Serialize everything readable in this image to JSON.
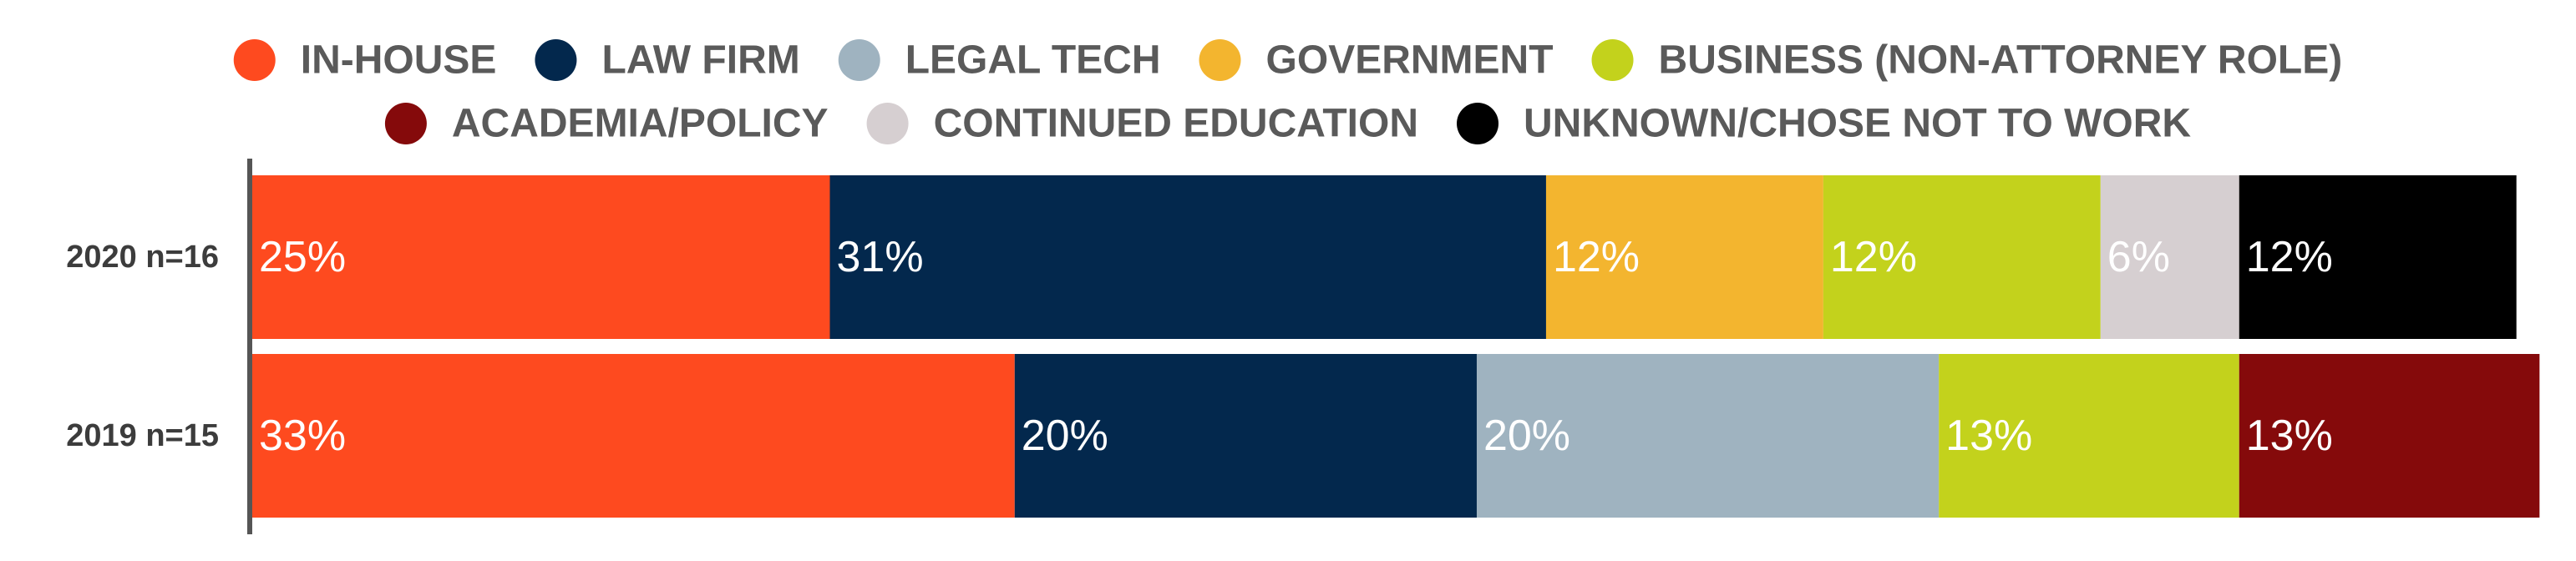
{
  "chart_data": {
    "type": "bar",
    "orientation": "horizontal",
    "stacked": true,
    "normalized": true,
    "legend_position": "top",
    "grid": false,
    "xlim": [
      0,
      100
    ],
    "categories": [
      "2020 n=16",
      "2019 n=15"
    ],
    "series": [
      {
        "name": "IN-HOUSE",
        "color": "#fe4a1f",
        "values": [
          25,
          33
        ],
        "labels": [
          "25%",
          "33%"
        ]
      },
      {
        "name": "LAW FIRM",
        "color": "#03284d",
        "values": [
          31,
          20
        ],
        "labels": [
          "31%",
          "20%"
        ]
      },
      {
        "name": "LEGAL TECH",
        "color": "#9fb3c0",
        "values": [
          0,
          20
        ],
        "labels": [
          "",
          "20%"
        ]
      },
      {
        "name": "GOVERNMENT",
        "color": "#f3b52f",
        "values": [
          12,
          0
        ],
        "labels": [
          "12%",
          ""
        ]
      },
      {
        "name": "BUSINESS (NON-ATTORNEY ROLE)",
        "color": "#c3d21c",
        "values": [
          12,
          13
        ],
        "labels": [
          "12%",
          "13%"
        ]
      },
      {
        "name": "ACADEMIA/POLICY",
        "color": "#850a0b",
        "values": [
          0,
          13
        ],
        "labels": [
          "",
          "13%"
        ]
      },
      {
        "name": "CONTINUED EDUCATION",
        "color": "#d6cfd1",
        "values": [
          6,
          0
        ],
        "labels": [
          "6%",
          ""
        ]
      },
      {
        "name": "UNKNOWN/CHOSE NOT TO WORK",
        "color": "#000000",
        "values": [
          12,
          0
        ],
        "labels": [
          "12%",
          ""
        ]
      }
    ]
  }
}
